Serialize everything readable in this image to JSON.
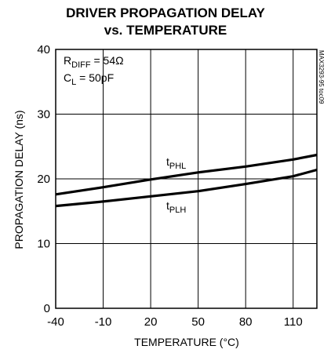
{
  "chart_data": {
    "type": "line",
    "title_line1": "DRIVER PROPAGATION DELAY",
    "title_line2": "vs. TEMPERATURE",
    "xlabel": "TEMPERATURE (°C)",
    "ylabel": "PROPAGATION DELAY (ns)",
    "xlim": [
      -40,
      125
    ],
    "ylim": [
      0,
      40
    ],
    "x_ticks": [
      -40,
      -10,
      20,
      50,
      80,
      110
    ],
    "y_ticks": [
      0,
      10,
      20,
      30,
      40
    ],
    "grid": true,
    "conditions": {
      "rdiff": {
        "main": "R",
        "sub": "DIFF",
        "rest": " = 54Ω"
      },
      "cl": {
        "main": "C",
        "sub": "L",
        "rest": " = 50pF"
      }
    },
    "side_note": "MAX3293-95 toc09",
    "series": [
      {
        "name_main": "t",
        "name_sub": "PHL",
        "x": [
          -40,
          -10,
          20,
          50,
          80,
          110,
          125
        ],
        "y": [
          17.6,
          18.7,
          19.9,
          21.0,
          21.9,
          23.0,
          23.7
        ]
      },
      {
        "name_main": "t",
        "name_sub": "PLH",
        "x": [
          -40,
          -10,
          20,
          50,
          80,
          110,
          125
        ],
        "y": [
          15.8,
          16.5,
          17.3,
          18.1,
          19.2,
          20.4,
          21.4
        ]
      }
    ]
  }
}
